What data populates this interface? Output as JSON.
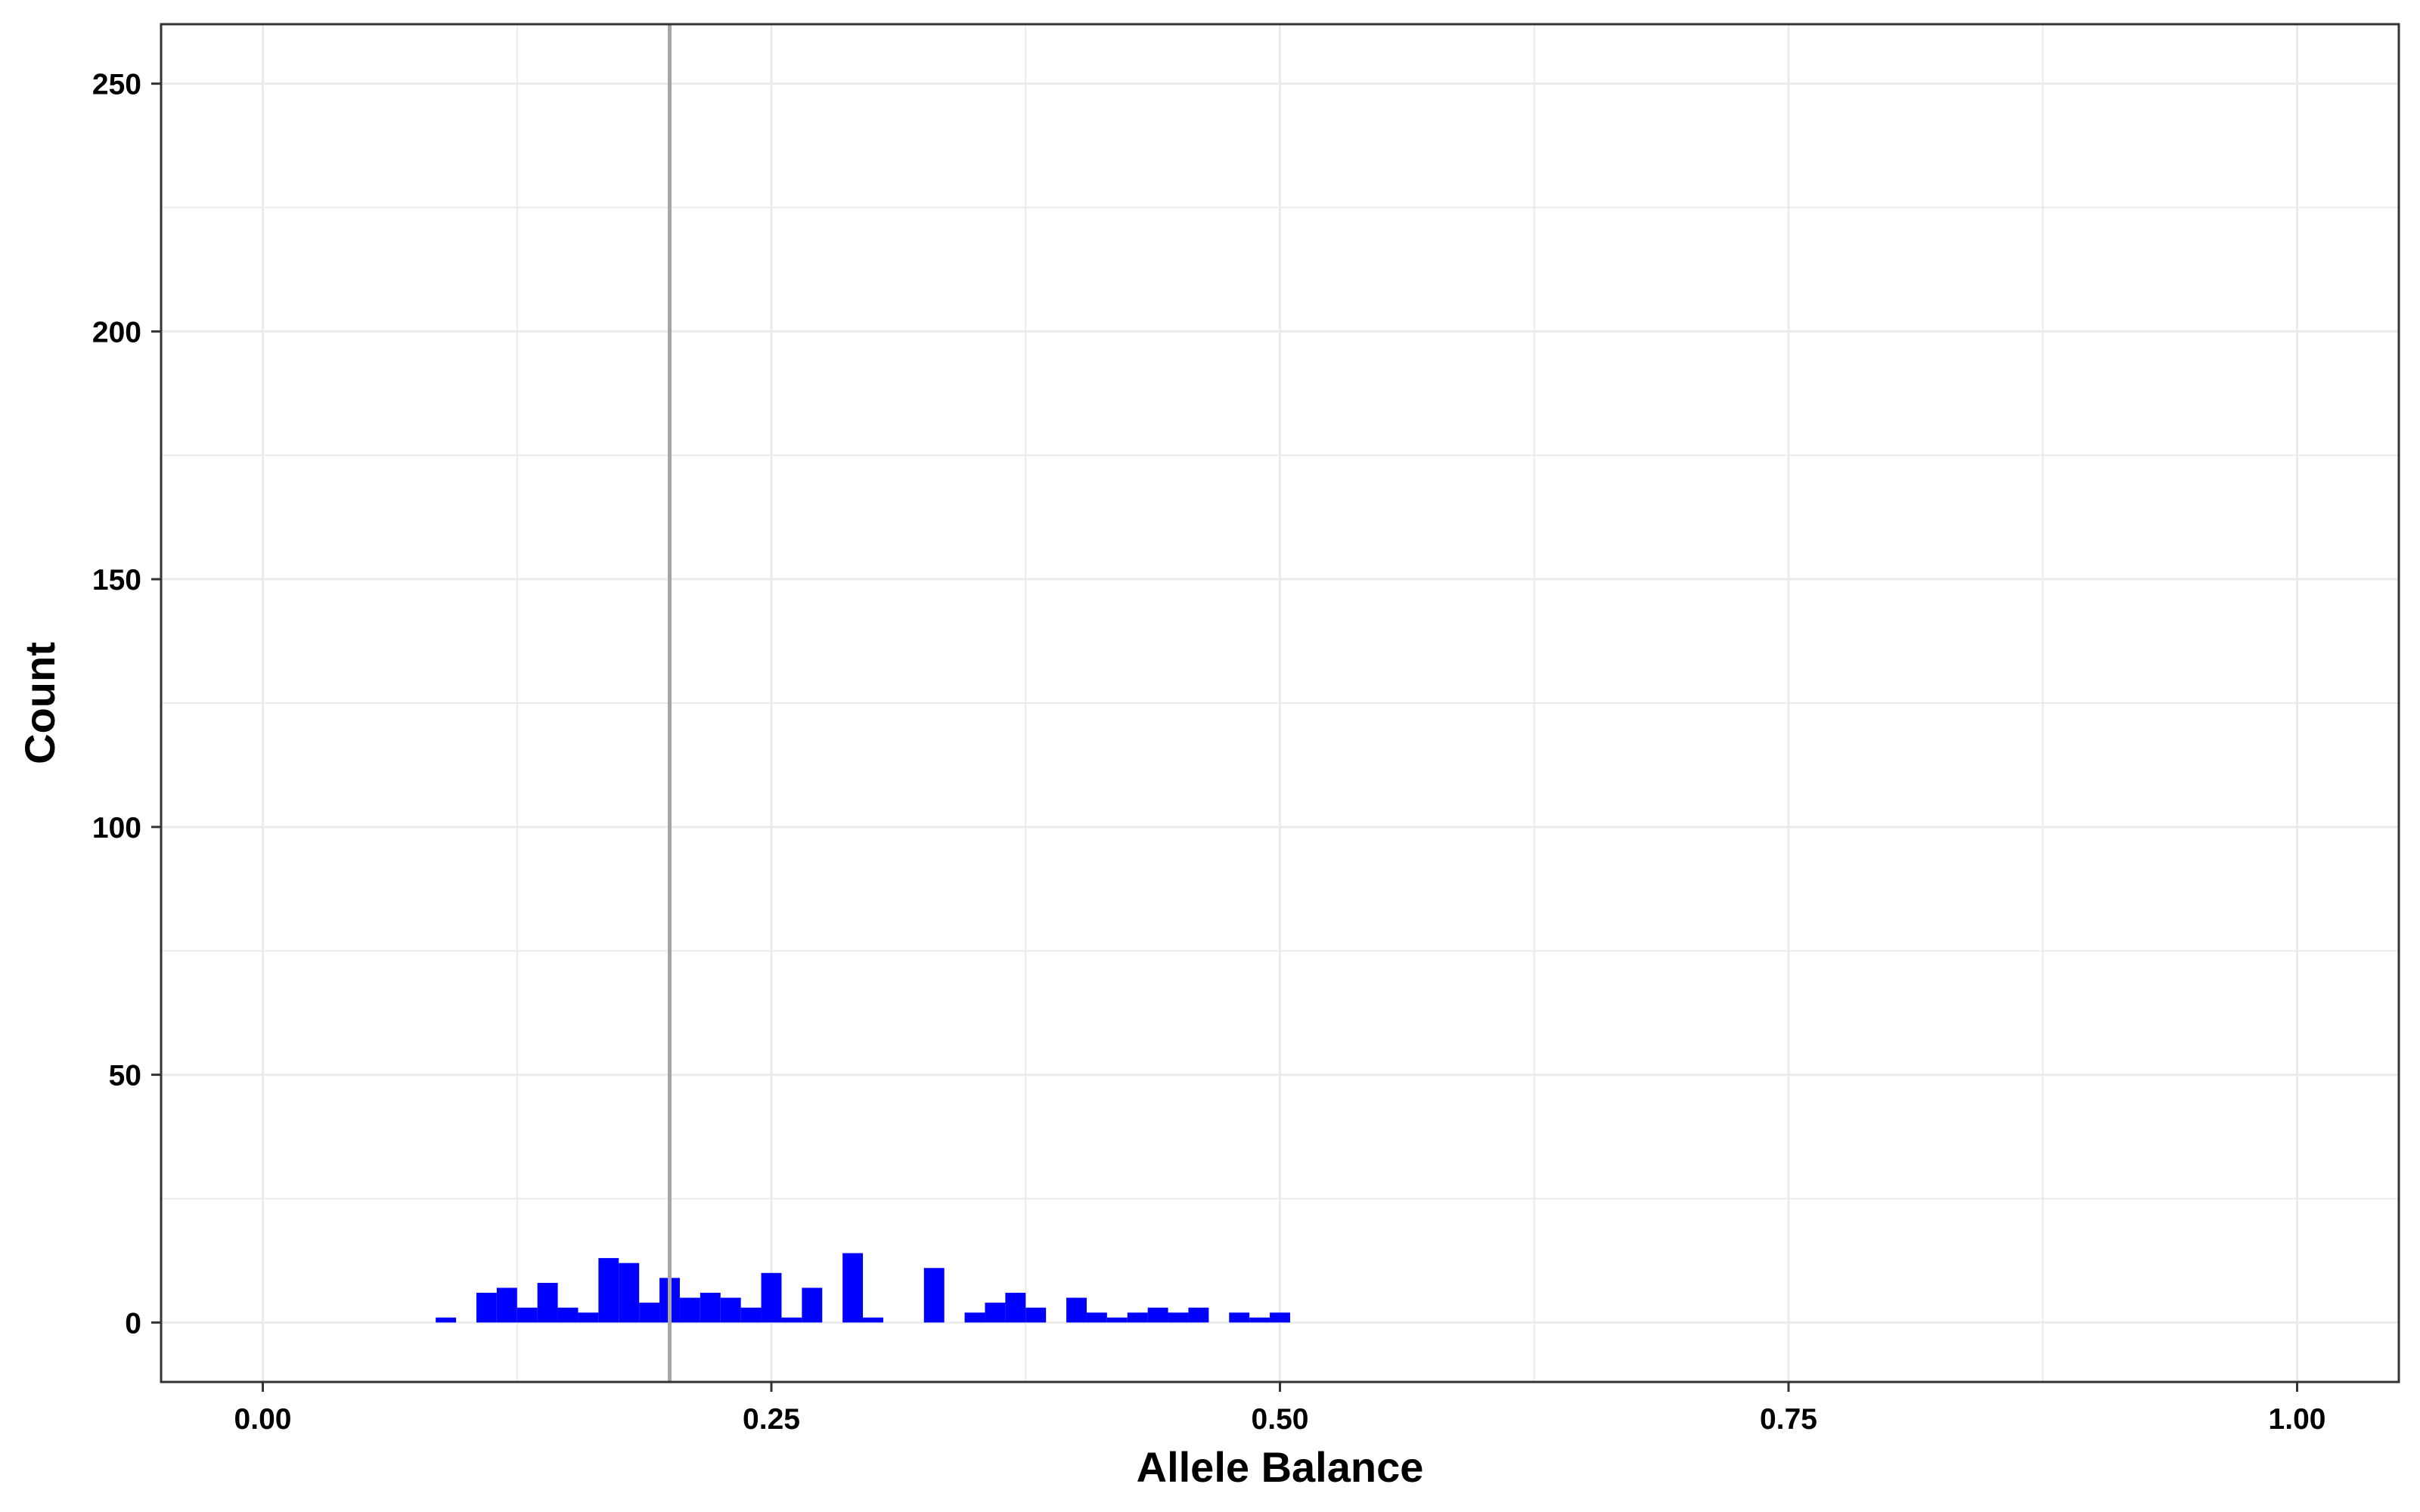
{
  "chart_data": {
    "type": "bar",
    "title": "",
    "xlabel": "Allele Balance",
    "ylabel": "Count",
    "xlim": [
      -0.05,
      1.05
    ],
    "ylim": [
      -12,
      262
    ],
    "x_ticks": [
      {
        "value": 0.0,
        "label": "0.00"
      },
      {
        "value": 0.25,
        "label": "0.25"
      },
      {
        "value": 0.5,
        "label": "0.50"
      },
      {
        "value": 0.75,
        "label": "0.75"
      },
      {
        "value": 1.0,
        "label": "1.00"
      }
    ],
    "y_ticks": [
      {
        "value": 0,
        "label": "0"
      },
      {
        "value": 50,
        "label": "50"
      },
      {
        "value": 100,
        "label": "100"
      },
      {
        "value": 150,
        "label": "150"
      },
      {
        "value": 200,
        "label": "200"
      },
      {
        "value": 250,
        "label": "250"
      }
    ],
    "x_minor_grid": [
      0.125,
      0.375,
      0.625,
      0.875
    ],
    "y_minor_grid": [
      25,
      75,
      125,
      175,
      225
    ],
    "grid": true,
    "bin_width": 0.01,
    "bars": [
      {
        "x": 0.09,
        "count": 1
      },
      {
        "x": 0.11,
        "count": 6
      },
      {
        "x": 0.12,
        "count": 7
      },
      {
        "x": 0.13,
        "count": 3
      },
      {
        "x": 0.14,
        "count": 8
      },
      {
        "x": 0.15,
        "count": 3
      },
      {
        "x": 0.16,
        "count": 2
      },
      {
        "x": 0.17,
        "count": 13
      },
      {
        "x": 0.18,
        "count": 12
      },
      {
        "x": 0.19,
        "count": 4
      },
      {
        "x": 0.2,
        "count": 9
      },
      {
        "x": 0.21,
        "count": 5
      },
      {
        "x": 0.22,
        "count": 6
      },
      {
        "x": 0.23,
        "count": 5
      },
      {
        "x": 0.24,
        "count": 3
      },
      {
        "x": 0.25,
        "count": 10
      },
      {
        "x": 0.26,
        "count": 1
      },
      {
        "x": 0.27,
        "count": 7
      },
      {
        "x": 0.29,
        "count": 14
      },
      {
        "x": 0.3,
        "count": 1
      },
      {
        "x": 0.33,
        "count": 11
      },
      {
        "x": 0.35,
        "count": 2
      },
      {
        "x": 0.36,
        "count": 4
      },
      {
        "x": 0.37,
        "count": 6
      },
      {
        "x": 0.38,
        "count": 3
      },
      {
        "x": 0.4,
        "count": 5
      },
      {
        "x": 0.41,
        "count": 2
      },
      {
        "x": 0.42,
        "count": 1
      },
      {
        "x": 0.43,
        "count": 2
      },
      {
        "x": 0.44,
        "count": 3
      },
      {
        "x": 0.45,
        "count": 2
      },
      {
        "x": 0.46,
        "count": 3
      },
      {
        "x": 0.48,
        "count": 2
      },
      {
        "x": 0.49,
        "count": 1
      },
      {
        "x": 0.5,
        "count": 2
      }
    ],
    "vline": {
      "x": 0.2,
      "color": "#a6a6a6"
    },
    "colors": {
      "bar": "#0000ff",
      "grid": "#ebebeb",
      "panel_border": "#333333",
      "background": "#ffffff"
    }
  }
}
